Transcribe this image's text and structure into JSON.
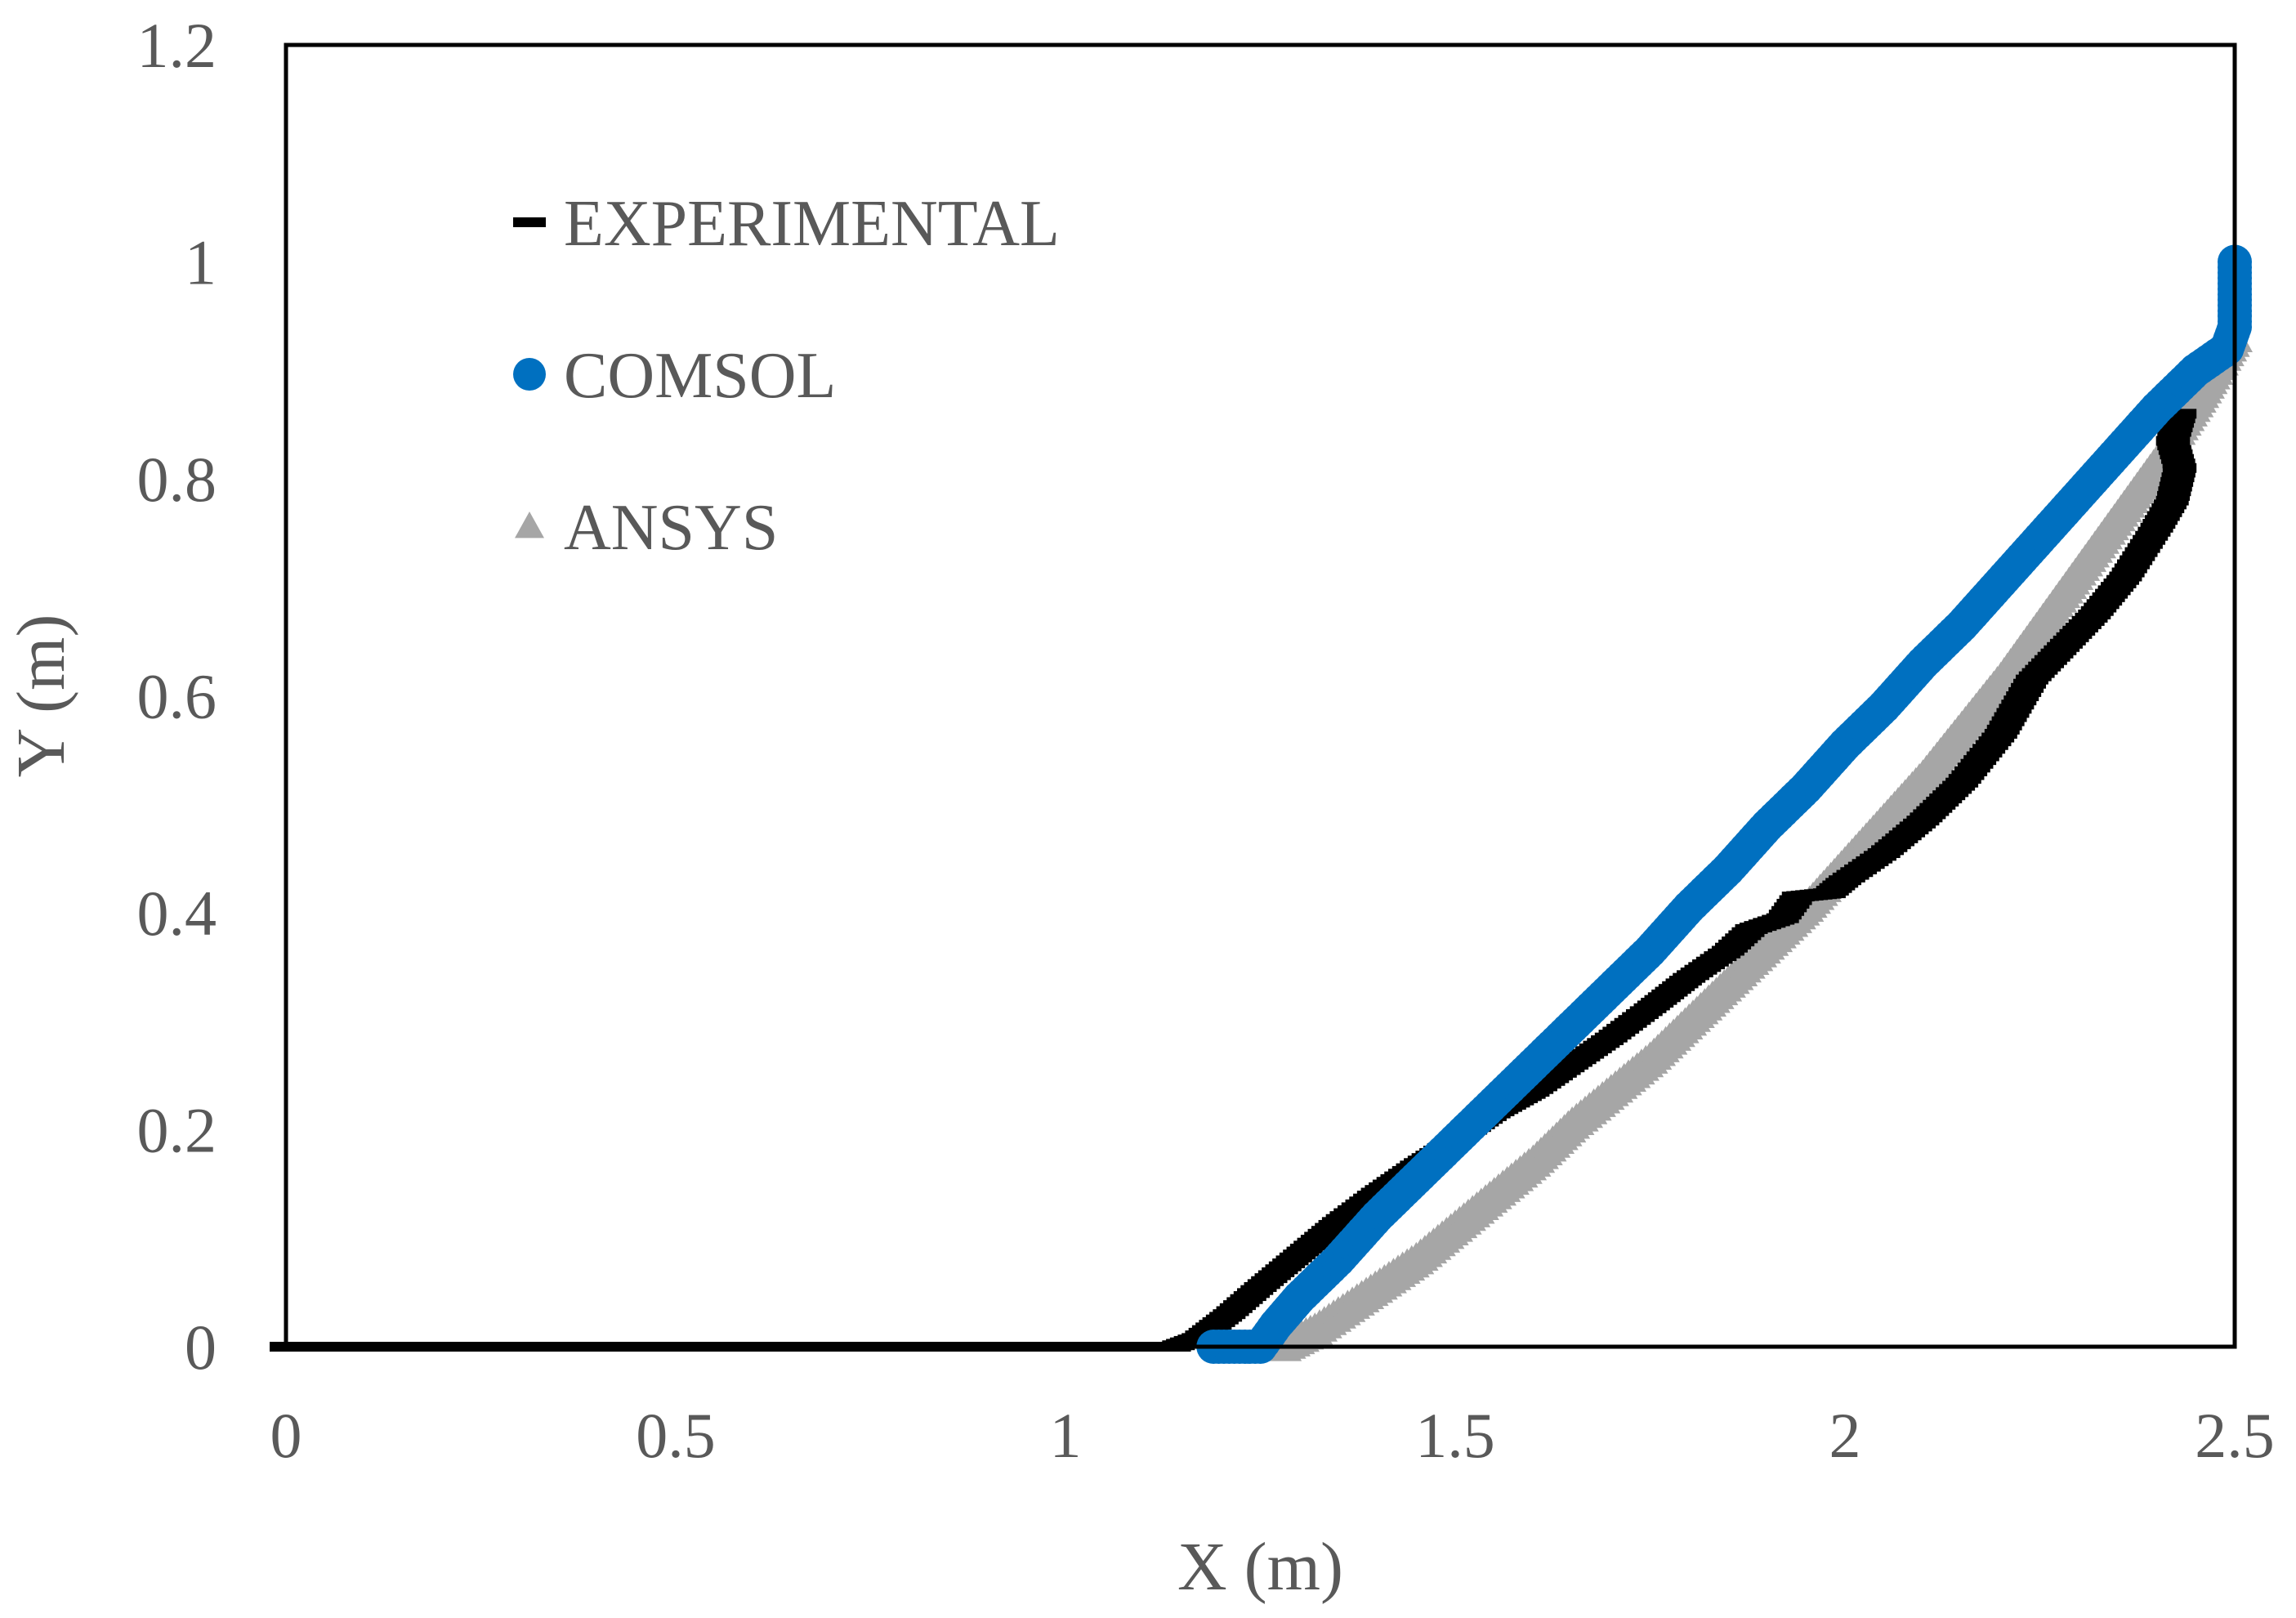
{
  "chart_data": {
    "type": "scatter",
    "title": "",
    "xlabel": "X (m)",
    "ylabel": "Y (m)",
    "xlim": [
      0,
      2.5
    ],
    "ylim": [
      0,
      1.2
    ],
    "xticks": [
      "0",
      "0.5",
      "1",
      "1.5",
      "2",
      "2.5"
    ],
    "yticks": [
      "0",
      "0.2",
      "0.4",
      "0.6",
      "0.8",
      "1",
      "1.2"
    ],
    "grid": false,
    "legend_position": "top-left",
    "series": [
      {
        "name": "EXPERIMENTAL",
        "marker": "dash",
        "color": "#000000",
        "points": [
          [
            0.0,
            0.0
          ],
          [
            1.14,
            0.0
          ],
          [
            1.17,
            0.008
          ],
          [
            1.21,
            0.03
          ],
          [
            1.25,
            0.055
          ],
          [
            1.3,
            0.085
          ],
          [
            1.35,
            0.115
          ],
          [
            1.4,
            0.142
          ],
          [
            1.45,
            0.167
          ],
          [
            1.5,
            0.19
          ],
          [
            1.55,
            0.215
          ],
          [
            1.6,
            0.235
          ],
          [
            1.65,
            0.26
          ],
          [
            1.7,
            0.285
          ],
          [
            1.75,
            0.312
          ],
          [
            1.8,
            0.34
          ],
          [
            1.85,
            0.365
          ],
          [
            1.88,
            0.385
          ],
          [
            1.92,
            0.395
          ],
          [
            1.94,
            0.415
          ],
          [
            1.98,
            0.418
          ],
          [
            2.0,
            0.43
          ],
          [
            2.05,
            0.455
          ],
          [
            2.1,
            0.485
          ],
          [
            2.15,
            0.52
          ],
          [
            2.2,
            0.565
          ],
          [
            2.24,
            0.615
          ],
          [
            2.28,
            0.645
          ],
          [
            2.32,
            0.675
          ],
          [
            2.36,
            0.71
          ],
          [
            2.4,
            0.755
          ],
          [
            2.42,
            0.78
          ],
          [
            2.43,
            0.81
          ],
          [
            2.42,
            0.835
          ],
          [
            2.43,
            0.86
          ]
        ]
      },
      {
        "name": "COMSOL",
        "marker": "circle",
        "color": "#0070c0",
        "points": [
          [
            1.19,
            0.0
          ],
          [
            1.25,
            0.0
          ],
          [
            1.27,
            0.02
          ],
          [
            1.3,
            0.045
          ],
          [
            1.35,
            0.08
          ],
          [
            1.4,
            0.12
          ],
          [
            1.45,
            0.155
          ],
          [
            1.5,
            0.19
          ],
          [
            1.55,
            0.225
          ],
          [
            1.6,
            0.26
          ],
          [
            1.65,
            0.295
          ],
          [
            1.7,
            0.33
          ],
          [
            1.75,
            0.365
          ],
          [
            1.8,
            0.405
          ],
          [
            1.85,
            0.44
          ],
          [
            1.9,
            0.48
          ],
          [
            1.95,
            0.515
          ],
          [
            2.0,
            0.555
          ],
          [
            2.05,
            0.59
          ],
          [
            2.1,
            0.63
          ],
          [
            2.15,
            0.665
          ],
          [
            2.2,
            0.705
          ],
          [
            2.25,
            0.745
          ],
          [
            2.3,
            0.785
          ],
          [
            2.35,
            0.825
          ],
          [
            2.4,
            0.865
          ],
          [
            2.45,
            0.9
          ],
          [
            2.49,
            0.92
          ],
          [
            2.5,
            0.94
          ],
          [
            2.5,
            0.97
          ],
          [
            2.5,
            1.0
          ]
        ]
      },
      {
        "name": "ANSYS",
        "marker": "triangle",
        "color": "#a6a6a6",
        "points": [
          [
            1.28,
            0.0
          ],
          [
            1.32,
            0.015
          ],
          [
            1.38,
            0.045
          ],
          [
            1.45,
            0.08
          ],
          [
            1.5,
            0.11
          ],
          [
            1.55,
            0.14
          ],
          [
            1.6,
            0.17
          ],
          [
            1.65,
            0.205
          ],
          [
            1.7,
            0.235
          ],
          [
            1.75,
            0.265
          ],
          [
            1.8,
            0.3
          ],
          [
            1.85,
            0.335
          ],
          [
            1.9,
            0.37
          ],
          [
            1.95,
            0.405
          ],
          [
            2.0,
            0.445
          ],
          [
            2.05,
            0.485
          ],
          [
            2.1,
            0.525
          ],
          [
            2.15,
            0.57
          ],
          [
            2.2,
            0.615
          ],
          [
            2.25,
            0.665
          ],
          [
            2.3,
            0.715
          ],
          [
            2.35,
            0.765
          ],
          [
            2.4,
            0.815
          ],
          [
            2.45,
            0.87
          ],
          [
            2.5,
            0.93
          ]
        ]
      }
    ]
  }
}
